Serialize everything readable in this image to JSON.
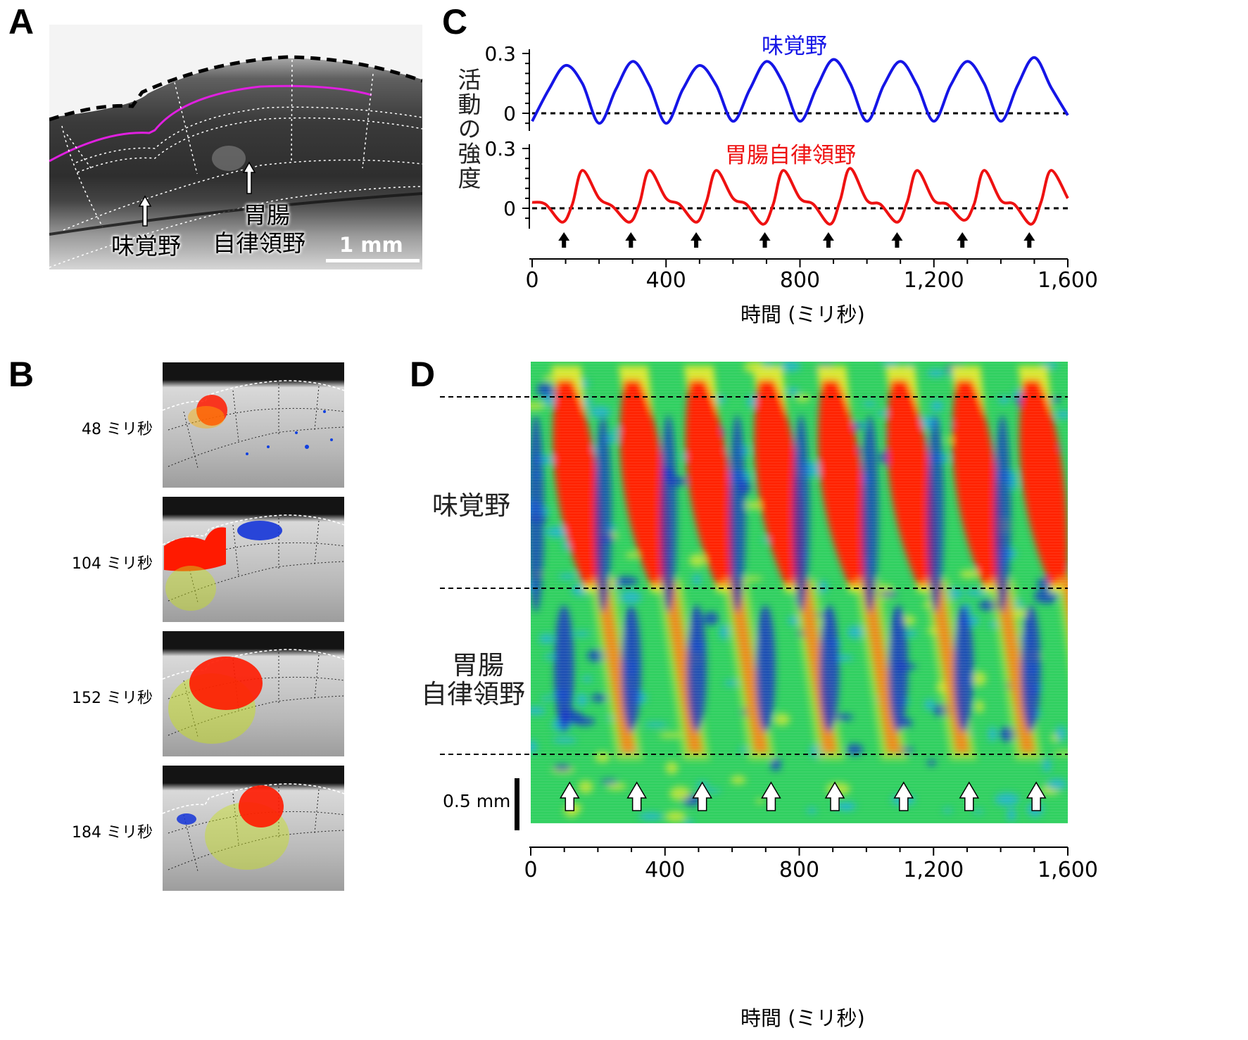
{
  "figure": {
    "panel_letters": [
      "A",
      "B",
      "C",
      "D"
    ]
  },
  "panelA": {
    "label_gustatory": "味覚野",
    "label_visceral_line1": "胃腸",
    "label_visceral_line2": "自律領野",
    "scalebar_label": "1 mm"
  },
  "panelB": {
    "frames": [
      {
        "time_label": "48 ミリ秒"
      },
      {
        "time_label": "104 ミリ秒"
      },
      {
        "time_label": "152 ミリ秒"
      },
      {
        "time_label": "184 ミリ秒"
      }
    ]
  },
  "panelC": {
    "ylabel": "活動の強度",
    "xlabel": "時間 (ミリ秒)",
    "trace_gustatory_label": "味覚野",
    "trace_visceral_label": "胃腸自律領野",
    "colors": {
      "gustatory": "#1515e6",
      "visceral": "#ee1111"
    }
  },
  "panelD": {
    "label_gustatory": "味覚野",
    "label_visceral_line1": "胃腸",
    "label_visceral_line2": "自律領野",
    "scalebar_label": "0.5 mm",
    "xlabel": "時間 (ミリ秒)"
  },
  "chart_data": [
    {
      "type": "line",
      "title": "味覚野",
      "xlabel": "時間 (ミリ秒)",
      "ylabel": "活動の強度",
      "xlim": [
        0,
        1600
      ],
      "ylim": [
        -0.05,
        0.3
      ],
      "yticks": [
        0,
        0.3
      ],
      "ytick_labels": [
        "0",
        "0.3"
      ],
      "xticks": [
        0,
        400,
        800,
        1200,
        1600
      ],
      "xtick_labels": [
        "0",
        "400",
        "800",
        "1,200",
        "1,600"
      ],
      "baseline": 0,
      "series": [
        {
          "name": "味覚野",
          "color": "#1515e6",
          "x": [
            0,
            50,
            100,
            150,
            200,
            250,
            300,
            350,
            400,
            450,
            500,
            550,
            600,
            650,
            700,
            750,
            800,
            850,
            900,
            950,
            1000,
            1050,
            1100,
            1150,
            1200,
            1250,
            1300,
            1350,
            1400,
            1450,
            1500,
            1550,
            1600
          ],
          "y": [
            -0.04,
            0.12,
            0.24,
            0.15,
            -0.05,
            0.12,
            0.26,
            0.14,
            -0.05,
            0.12,
            0.24,
            0.14,
            -0.04,
            0.12,
            0.26,
            0.15,
            -0.04,
            0.13,
            0.27,
            0.15,
            -0.04,
            0.14,
            0.26,
            0.14,
            -0.04,
            0.14,
            0.26,
            0.15,
            -0.04,
            0.14,
            0.28,
            0.13,
            -0.01
          ]
        }
      ]
    },
    {
      "type": "line",
      "title": "胃腸自律領野",
      "xlabel": "時間 (ミリ秒)",
      "ylabel": "活動の強度",
      "xlim": [
        0,
        1600
      ],
      "ylim": [
        -0.08,
        0.3
      ],
      "yticks": [
        0,
        0.3
      ],
      "ytick_labels": [
        "0",
        "0.3"
      ],
      "xticks": [
        0,
        400,
        800,
        1200,
        1600
      ],
      "xtick_labels": [
        "0",
        "400",
        "800",
        "1,200",
        "1,600"
      ],
      "baseline": 0,
      "series": [
        {
          "name": "胃腸自律領野",
          "color": "#ee1111",
          "x": [
            0,
            40,
            90,
            120,
            150,
            200,
            240,
            290,
            320,
            350,
            400,
            440,
            490,
            520,
            550,
            600,
            640,
            690,
            720,
            750,
            800,
            840,
            890,
            920,
            950,
            1000,
            1040,
            1090,
            1120,
            1150,
            1200,
            1240,
            1290,
            1320,
            1350,
            1400,
            1440,
            1490,
            1520,
            1550,
            1600
          ],
          "y": [
            0.03,
            0.02,
            -0.07,
            0.02,
            0.19,
            0.05,
            0.01,
            -0.07,
            0.02,
            0.19,
            0.05,
            0.02,
            -0.07,
            0.03,
            0.19,
            0.05,
            0.02,
            -0.08,
            0.02,
            0.19,
            0.05,
            0.02,
            -0.08,
            0.04,
            0.2,
            0.04,
            0.02,
            -0.07,
            0.03,
            0.19,
            0.04,
            0.02,
            -0.06,
            0.02,
            0.19,
            0.04,
            0.02,
            -0.08,
            0.03,
            0.19,
            0.05
          ]
        }
      ],
      "arrow_times": [
        95,
        295,
        490,
        695,
        885,
        1090,
        1285,
        1485
      ]
    },
    {
      "type": "heatmap",
      "xlabel": "時間 (ミリ秒)",
      "xlim": [
        0,
        1600
      ],
      "xticks": [
        0,
        400,
        800,
        1200,
        1600
      ],
      "xtick_labels": [
        "0",
        "400",
        "800",
        "1,200",
        "1,600"
      ],
      "row_regions": [
        "味覚野",
        "胃腸自律領野"
      ],
      "scalebar": "0.5 mm",
      "wave_start_times": [
        95,
        295,
        490,
        695,
        885,
        1090,
        1285,
        1485
      ],
      "colormap": [
        "#1530c8",
        "#20b0e0",
        "#30d060",
        "#d8e830",
        "#ff2000"
      ]
    }
  ]
}
